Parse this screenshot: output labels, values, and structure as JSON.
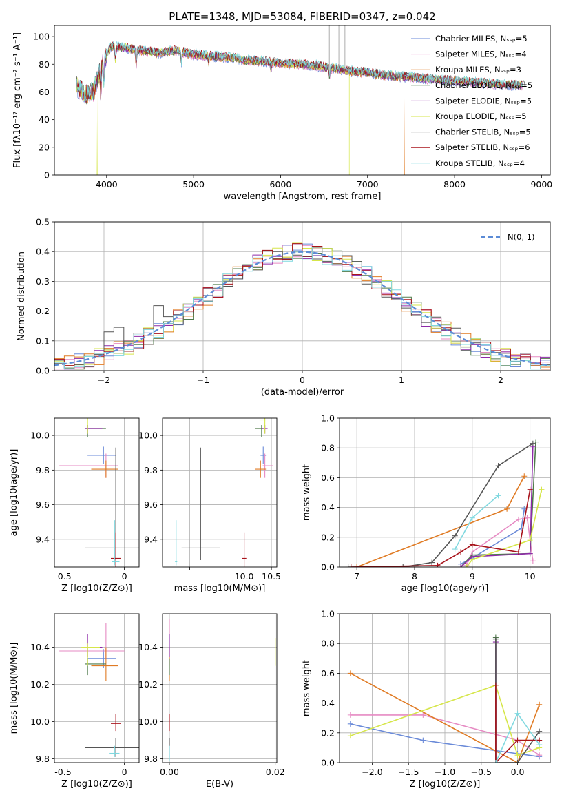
{
  "chart_data": [
    {
      "type": "line",
      "title": "PLATE=1348, MJD=53084, FIBERID=0347, z=0.042",
      "xlabel": "wavelength [Angstrom, rest frame]",
      "ylabel": "Flux [fλ10⁻¹⁷ erg cm⁻² s⁻¹ A⁻¹]",
      "xlim": [
        3400,
        9100
      ],
      "ylim": [
        0,
        108
      ],
      "xticks": [
        4000,
        5000,
        6000,
        7000,
        8000,
        9000
      ],
      "yticks": [
        0,
        20,
        40,
        60,
        80,
        100
      ],
      "legend_position": "top-right",
      "series": [
        {
          "name": "Chabrier MILES, N_SSP=5",
          "color": "#6a8ad8"
        },
        {
          "name": "Salpeter MILES, N_SSP=4",
          "color": "#e68ac3"
        },
        {
          "name": "Kroupa MILES, N_SSP=3",
          "color": "#e07b24"
        },
        {
          "name": "Chabrier ELODIE, N_SSP=5",
          "color": "#4e7a4a"
        },
        {
          "name": "Salpeter ELODIE, N_SSP=5",
          "color": "#8e2aa8"
        },
        {
          "name": "Kroupa ELODIE, N_SSP=5",
          "color": "#d6e64a"
        },
        {
          "name": "Chabrier STELIB, N_SSP=5",
          "color": "#555555"
        },
        {
          "name": "Salpeter STELIB, N_SSP=6",
          "color": "#a8141c"
        },
        {
          "name": "Kroupa STELIB, N_SSP=4",
          "color": "#7fd8df"
        }
      ],
      "continuum": [
        [
          3650,
          65
        ],
        [
          3750,
          58
        ],
        [
          3850,
          60
        ],
        [
          3950,
          80
        ],
        [
          4050,
          93
        ],
        [
          4200,
          92
        ],
        [
          4400,
          90
        ],
        [
          4600,
          88
        ],
        [
          4800,
          90
        ],
        [
          5000,
          87
        ],
        [
          5200,
          86
        ],
        [
          5400,
          85
        ],
        [
          5600,
          83
        ],
        [
          5800,
          82
        ],
        [
          6000,
          81
        ],
        [
          6200,
          80
        ],
        [
          6400,
          79
        ],
        [
          6600,
          77
        ],
        [
          6800,
          75
        ],
        [
          7000,
          74
        ],
        [
          7200,
          72
        ],
        [
          7400,
          71
        ],
        [
          7600,
          70
        ],
        [
          7800,
          69
        ],
        [
          8000,
          68
        ],
        [
          8200,
          67
        ],
        [
          8400,
          66
        ],
        [
          8600,
          65
        ],
        [
          8800,
          65
        ]
      ]
    },
    {
      "type": "bar",
      "xlabel": "(data-model)/error",
      "ylabel": "Normed distribution",
      "xlim": [
        -2.5,
        2.5
      ],
      "ylim": [
        0,
        0.5
      ],
      "xticks": [
        -2,
        -1,
        0,
        1,
        2
      ],
      "xtick_labels": [
        "−2",
        "−1",
        "0",
        "1",
        "2"
      ],
      "yticks": [
        0.0,
        0.1,
        0.2,
        0.3,
        0.4,
        0.5
      ],
      "legend": "N(0, 1)",
      "legend_position": "top-right",
      "grid": true
    },
    {
      "type": "scatter",
      "xlabel": "Z [log10(Z/Z⊙)]",
      "ylabel": "age  [log10(age/yr)]",
      "xlim": [
        -0.57,
        0.12
      ],
      "ylim": [
        9.24,
        10.1
      ],
      "xticks": [
        -0.5,
        0.0
      ],
      "yticks": [
        9.4,
        9.6,
        9.8,
        10.0
      ],
      "points": [
        {
          "x": -0.17,
          "y": 9.885,
          "xerr": [
            0.13,
            0.1
          ],
          "yerr": [
            0.05,
            0.05
          ],
          "color": "#6a8ad8"
        },
        {
          "x": -0.15,
          "y": 9.825,
          "xerr": [
            0.38,
            0.1
          ],
          "yerr": [
            0.07,
            0.07
          ],
          "color": "#e68ac3"
        },
        {
          "x": -0.15,
          "y": 9.805,
          "xerr": [
            0.12,
            0.1
          ],
          "yerr": [
            0.05,
            0.05
          ],
          "color": "#e07b24"
        },
        {
          "x": -0.3,
          "y": 10.04,
          "xerr": [
            0.02,
            0.15
          ],
          "yerr": [
            0.05,
            0.02
          ],
          "color": "#4e7a4a"
        },
        {
          "x": -0.3,
          "y": 10.04,
          "xerr": [
            0.02,
            0.12
          ],
          "yerr": [
            0.03,
            0.02
          ],
          "color": "#8e2aa8"
        },
        {
          "x": -0.3,
          "y": 10.09,
          "xerr": [
            0.05,
            0.1
          ],
          "yerr": [
            0.08,
            0.02
          ],
          "color": "#d6e64a"
        },
        {
          "x": -0.07,
          "y": 9.35,
          "xerr": [
            0.25,
            0.25
          ],
          "yerr": [
            0.07,
            0.58
          ],
          "color": "#555555"
        },
        {
          "x": -0.07,
          "y": 9.29,
          "xerr": [
            0.04,
            0.04
          ],
          "yerr": [
            0.05,
            0.15
          ],
          "color": "#a8141c"
        },
        {
          "x": -0.08,
          "y": 9.27,
          "xerr": [
            0.02,
            0.04
          ],
          "yerr": [
            0.02,
            0.24
          ],
          "color": "#7fd8df"
        }
      ]
    },
    {
      "type": "scatter",
      "xlabel": "mass [log10(M/M⊙)]",
      "ylabel": "",
      "xlim": [
        8.5,
        10.6
      ],
      "ylim": [
        9.24,
        10.1
      ],
      "xticks": [
        9.0,
        10.0,
        10.5
      ],
      "xtick_labels": [
        "",
        "10.0",
        "10.5"
      ],
      "yticks": [
        9.4,
        9.6,
        9.8,
        10.0
      ],
      "points": [
        {
          "x": 10.35,
          "y": 9.885,
          "xerr": [
            0.05,
            0.05
          ],
          "yerr": [
            0.05,
            0.05
          ],
          "color": "#6a8ad8"
        },
        {
          "x": 10.38,
          "y": 9.825,
          "xerr": [
            0.04,
            0.15
          ],
          "yerr": [
            0.07,
            0.07
          ],
          "color": "#e68ac3"
        },
        {
          "x": 10.3,
          "y": 9.805,
          "xerr": [
            0.1,
            0.1
          ],
          "yerr": [
            0.05,
            0.05
          ],
          "color": "#e07b24"
        },
        {
          "x": 10.32,
          "y": 10.04,
          "xerr": [
            0.12,
            0.03
          ],
          "yerr": [
            0.05,
            0.02
          ],
          "color": "#4e7a4a"
        },
        {
          "x": 10.38,
          "y": 10.04,
          "xerr": [
            0.05,
            0.05
          ],
          "yerr": [
            0.03,
            0.02
          ],
          "color": "#8e2aa8"
        },
        {
          "x": 10.38,
          "y": 10.09,
          "xerr": [
            0.1,
            0.02
          ],
          "yerr": [
            0.08,
            0.02
          ],
          "color": "#d6e64a"
        },
        {
          "x": 9.2,
          "y": 9.35,
          "xerr": [
            0.35,
            0.35
          ],
          "yerr": [
            0.07,
            0.58
          ],
          "color": "#555555"
        },
        {
          "x": 10.0,
          "y": 9.29,
          "xerr": [
            0.04,
            0.04
          ],
          "yerr": [
            0.05,
            0.15
          ],
          "color": "#a8141c"
        },
        {
          "x": 8.75,
          "y": 9.27,
          "xerr": [
            0.02,
            0.02
          ],
          "yerr": [
            0.02,
            0.24
          ],
          "color": "#7fd8df"
        }
      ]
    },
    {
      "type": "line",
      "xlabel": "age  [log10(age/yr)]",
      "ylabel": "mass weight",
      "xlim": [
        6.7,
        10.35
      ],
      "ylim": [
        0,
        1.0
      ],
      "xticks": [
        7,
        8,
        9,
        10
      ],
      "yticks": [
        0.0,
        0.2,
        0.4,
        0.6,
        0.8,
        1.0
      ],
      "grid": true,
      "series": [
        {
          "color": "#6a8ad8",
          "x": [
            8.8,
            9.0,
            9.85,
            9.9
          ],
          "y": [
            0.02,
            0.06,
            0.26,
            0.39
          ]
        },
        {
          "color": "#e68ac3",
          "x": [
            8.9,
            9.0,
            9.8,
            9.95,
            10.05
          ],
          "y": [
            0.01,
            0.1,
            0.32,
            0.33,
            0.04
          ]
        },
        {
          "color": "#e07b24",
          "x": [
            7.0,
            9.6,
            9.9
          ],
          "y": [
            0.0,
            0.39,
            0.61
          ]
        },
        {
          "color": "#4e7a4a",
          "x": [
            8.8,
            9.0,
            10.0,
            10.1
          ],
          "y": [
            0.0,
            0.08,
            0.09,
            0.84
          ]
        },
        {
          "color": "#8e2aa8",
          "x": [
            8.8,
            9.0,
            10.0,
            10.05
          ],
          "y": [
            0.0,
            0.07,
            0.09,
            0.81
          ]
        },
        {
          "color": "#d6e64a",
          "x": [
            8.9,
            9.0,
            10.0,
            10.2
          ],
          "y": [
            0.0,
            0.05,
            0.18,
            0.52
          ]
        },
        {
          "color": "#555555",
          "x": [
            6.85,
            7.8,
            8.3,
            8.7,
            9.45,
            10.05
          ],
          "y": [
            0.0,
            0.0,
            0.03,
            0.21,
            0.68,
            0.83
          ]
        },
        {
          "color": "#a8141c",
          "x": [
            6.9,
            8.4,
            8.8,
            9.0,
            9.8,
            10.0
          ],
          "y": [
            0.0,
            0.01,
            0.1,
            0.15,
            0.1,
            0.52
          ]
        },
        {
          "color": "#7fd8df",
          "x": [
            8.7,
            9.0,
            9.45
          ],
          "y": [
            0.12,
            0.33,
            0.48
          ]
        }
      ]
    },
    {
      "type": "scatter",
      "xlabel": "Z [log10(Z/Z⊙)]",
      "ylabel": "mass [log10(M/M⊙)]",
      "xlim": [
        -0.57,
        0.12
      ],
      "ylim": [
        9.78,
        10.58
      ],
      "xticks": [
        -0.5,
        0.0
      ],
      "yticks": [
        9.8,
        10.0,
        10.2,
        10.4
      ],
      "points": [
        {
          "x": -0.17,
          "y": 10.34,
          "xerr": [
            0.13,
            0.1
          ],
          "yerr": [
            0.05,
            0.05
          ],
          "color": "#6a8ad8"
        },
        {
          "x": -0.15,
          "y": 10.38,
          "xerr": [
            0.38,
            0.15
          ],
          "yerr": [
            0.04,
            0.15
          ],
          "color": "#e68ac3"
        },
        {
          "x": -0.15,
          "y": 10.3,
          "xerr": [
            0.12,
            0.1
          ],
          "yerr": [
            0.08,
            0.1
          ],
          "color": "#e07b24"
        },
        {
          "x": -0.3,
          "y": 10.31,
          "xerr": [
            0.02,
            0.15
          ],
          "yerr": [
            0.06,
            0.03
          ],
          "color": "#4e7a4a"
        },
        {
          "x": -0.3,
          "y": 10.4,
          "xerr": [
            0.02,
            0.12
          ],
          "yerr": [
            0.05,
            0.07
          ],
          "color": "#8e2aa8"
        },
        {
          "x": -0.3,
          "y": 10.4,
          "xerr": [
            0.05,
            0.1
          ],
          "yerr": [
            0.1,
            0.02
          ],
          "color": "#d6e64a"
        },
        {
          "x": -0.07,
          "y": 9.86,
          "xerr": [
            0.25,
            0.25
          ],
          "yerr": [
            0.05,
            0.05
          ],
          "color": "#555555"
        },
        {
          "x": -0.07,
          "y": 9.99,
          "xerr": [
            0.04,
            0.04
          ],
          "yerr": [
            0.04,
            0.05
          ],
          "color": "#a8141c"
        },
        {
          "x": -0.08,
          "y": 9.83,
          "xerr": [
            0.04,
            0.04
          ],
          "yerr": [
            0.02,
            0.04
          ],
          "color": "#7fd8df"
        }
      ]
    },
    {
      "type": "scatter",
      "xlabel": "E(B-V)",
      "ylabel": "",
      "xlim": [
        -0.0013,
        0.0203
      ],
      "ylim": [
        9.78,
        10.58
      ],
      "xticks": [
        0.0,
        0.02
      ],
      "xtick_labels": [
        "0.00",
        "0.02"
      ],
      "yticks": [
        9.8,
        10.0,
        10.2,
        10.4
      ],
      "points": [
        {
          "x": 0.0,
          "y": 10.45,
          "yerr": [
            0.15,
            0.1
          ],
          "color": "#e68ac3"
        },
        {
          "x": 0.0,
          "y": 10.3,
          "yerr": [
            0.08,
            0.1
          ],
          "color": "#e07b24"
        },
        {
          "x": 0.0,
          "y": 10.31,
          "yerr": [
            0.06,
            0.03
          ],
          "color": "#4e7a4a"
        },
        {
          "x": 0.0,
          "y": 10.4,
          "yerr": [
            0.05,
            0.07
          ],
          "color": "#8e2aa8"
        },
        {
          "x": 0.02,
          "y": 10.4,
          "yerr": [
            0.1,
            0.05
          ],
          "color": "#d6e64a"
        },
        {
          "x": 0.0,
          "y": 9.86,
          "yerr": [
            0.05,
            0.05
          ],
          "color": "#555555"
        },
        {
          "x": 0.0,
          "y": 9.99,
          "yerr": [
            0.04,
            0.05
          ],
          "color": "#a8141c"
        },
        {
          "x": 0.0,
          "y": 9.83,
          "yerr": [
            0.04,
            0.04
          ],
          "color": "#7fd8df"
        }
      ]
    },
    {
      "type": "line",
      "xlabel": "Z [log10(Z/Z⊙)]",
      "ylabel": "mass weight",
      "xlim": [
        -2.45,
        0.45
      ],
      "ylim": [
        0,
        1.0
      ],
      "xticks": [
        -2.0,
        -1.5,
        -1.0,
        -0.5,
        0.0
      ],
      "xtick_labels": [
        "−2.0",
        "−1.5",
        "−1.0",
        "−0.5",
        "0.0"
      ],
      "yticks": [
        0.0,
        0.2,
        0.4,
        0.6,
        0.8,
        1.0
      ],
      "grid": true,
      "series": [
        {
          "color": "#6a8ad8",
          "x": [
            -2.3,
            -1.3,
            0.0,
            0.3
          ],
          "y": [
            0.26,
            0.15,
            0.06,
            0.04
          ]
        },
        {
          "color": "#e68ac3",
          "x": [
            -2.3,
            -1.3,
            0.0,
            0.3
          ],
          "y": [
            0.32,
            0.32,
            0.15,
            0.05
          ]
        },
        {
          "color": "#e07b24",
          "x": [
            -2.3,
            0.0,
            0.3
          ],
          "y": [
            0.6,
            0.0,
            0.39
          ]
        },
        {
          "color": "#4e7a4a",
          "x": [
            -0.3,
            -0.3
          ],
          "y": [
            0.0,
            0.84
          ]
        },
        {
          "color": "#8e2aa8",
          "x": [
            -0.3,
            -0.3
          ],
          "y": [
            0.0,
            0.81
          ]
        },
        {
          "color": "#d6e64a",
          "x": [
            -2.3,
            -0.3,
            0.0,
            0.3
          ],
          "y": [
            0.18,
            0.52,
            0.05,
            0.1
          ]
        },
        {
          "color": "#555555",
          "x": [
            -0.3,
            -0.3,
            0.0,
            0.3
          ],
          "y": [
            0.83,
            0.0,
            0.0,
            0.21
          ]
        },
        {
          "color": "#a8141c",
          "x": [
            -0.3,
            -0.3,
            0.0,
            0.3
          ],
          "y": [
            0.52,
            0.0,
            0.15,
            0.15
          ]
        },
        {
          "color": "#7fd8df",
          "x": [
            -0.3,
            0.0,
            0.3
          ],
          "y": [
            0.0,
            0.33,
            0.12
          ]
        }
      ]
    }
  ]
}
